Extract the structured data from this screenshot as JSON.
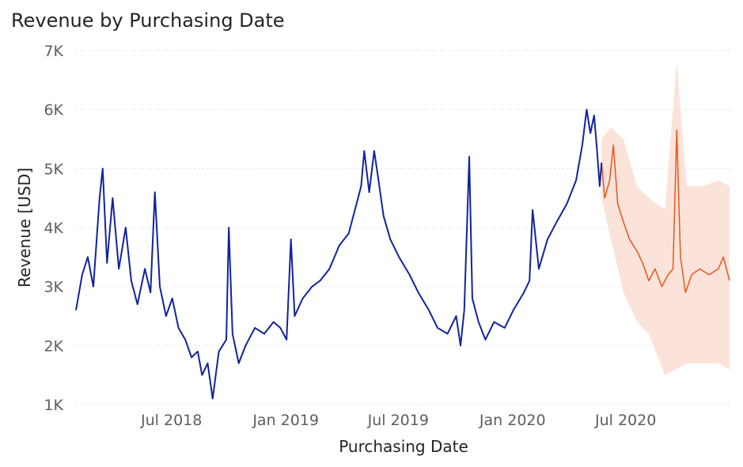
{
  "chart_data": {
    "type": "line",
    "title": "Revenue by Purchasing Date",
    "xlabel": "Purchasing Date",
    "ylabel": "Revenue [USD]",
    "x_tick_labels": [
      "Jul 2018",
      "Jan 2019",
      "Jul 2019",
      "Jan 2020",
      "Jul 2020"
    ],
    "y_tick_labels": [
      "1K",
      "2K",
      "3K",
      "4K",
      "5K",
      "6K",
      "7K"
    ],
    "y_ticks": [
      1000,
      2000,
      3000,
      4000,
      5000,
      6000,
      7000
    ],
    "ylim": [
      1000,
      7000
    ],
    "xlim": [
      "2018-02-10",
      "2020-12-28"
    ],
    "grid": true,
    "colors": {
      "actual": "#12239E",
      "forecast": "#E8561A",
      "band": "#FBE3D9"
    },
    "series": [
      {
        "kind": "actual",
        "points": [
          [
            "2018-02-10",
            2600
          ],
          [
            "2018-02-20",
            3200
          ],
          [
            "2018-03-01",
            3500
          ],
          [
            "2018-03-10",
            3000
          ],
          [
            "2018-03-20",
            4500
          ],
          [
            "2018-03-25",
            5000
          ],
          [
            "2018-04-01",
            3400
          ],
          [
            "2018-04-10",
            4500
          ],
          [
            "2018-04-20",
            3300
          ],
          [
            "2018-05-01",
            4000
          ],
          [
            "2018-05-10",
            3100
          ],
          [
            "2018-05-20",
            2700
          ],
          [
            "2018-06-01",
            3300
          ],
          [
            "2018-06-10",
            2900
          ],
          [
            "2018-06-17",
            4600
          ],
          [
            "2018-06-25",
            3000
          ],
          [
            "2018-07-05",
            2500
          ],
          [
            "2018-07-15",
            2800
          ],
          [
            "2018-07-25",
            2300
          ],
          [
            "2018-08-05",
            2100
          ],
          [
            "2018-08-15",
            1800
          ],
          [
            "2018-08-25",
            1900
          ],
          [
            "2018-09-01",
            1500
          ],
          [
            "2018-09-10",
            1700
          ],
          [
            "2018-09-18",
            1100
          ],
          [
            "2018-09-28",
            1900
          ],
          [
            "2018-10-10",
            2100
          ],
          [
            "2018-10-14",
            4000
          ],
          [
            "2018-10-20",
            2200
          ],
          [
            "2018-10-30",
            1700
          ],
          [
            "2018-11-10",
            2000
          ],
          [
            "2018-11-25",
            2300
          ],
          [
            "2018-12-10",
            2200
          ],
          [
            "2018-12-25",
            2400
          ],
          [
            "2019-01-05",
            2300
          ],
          [
            "2019-01-15",
            2100
          ],
          [
            "2019-01-22",
            3800
          ],
          [
            "2019-01-28",
            2500
          ],
          [
            "2019-02-10",
            2800
          ],
          [
            "2019-02-25",
            3000
          ],
          [
            "2019-03-10",
            3100
          ],
          [
            "2019-03-25",
            3300
          ],
          [
            "2019-04-10",
            3700
          ],
          [
            "2019-04-25",
            3900
          ],
          [
            "2019-05-05",
            4300
          ],
          [
            "2019-05-15",
            4700
          ],
          [
            "2019-05-20",
            5300
          ],
          [
            "2019-05-28",
            4600
          ],
          [
            "2019-06-05",
            5300
          ],
          [
            "2019-06-12",
            4800
          ],
          [
            "2019-06-20",
            4200
          ],
          [
            "2019-07-01",
            3800
          ],
          [
            "2019-07-15",
            3500
          ],
          [
            "2019-08-01",
            3200
          ],
          [
            "2019-08-15",
            2900
          ],
          [
            "2019-09-01",
            2600
          ],
          [
            "2019-09-15",
            2300
          ],
          [
            "2019-10-01",
            2200
          ],
          [
            "2019-10-15",
            2500
          ],
          [
            "2019-10-22",
            2000
          ],
          [
            "2019-10-28",
            2600
          ],
          [
            "2019-11-05",
            5200
          ],
          [
            "2019-11-10",
            2800
          ],
          [
            "2019-11-20",
            2400
          ],
          [
            "2019-12-01",
            2100
          ],
          [
            "2019-12-15",
            2400
          ],
          [
            "2020-01-01",
            2300
          ],
          [
            "2020-01-15",
            2600
          ],
          [
            "2020-02-01",
            2900
          ],
          [
            "2020-02-10",
            3100
          ],
          [
            "2020-02-15",
            4300
          ],
          [
            "2020-02-25",
            3300
          ],
          [
            "2020-03-10",
            3800
          ],
          [
            "2020-03-25",
            4100
          ],
          [
            "2020-04-10",
            4400
          ],
          [
            "2020-04-25",
            4800
          ],
          [
            "2020-05-05",
            5400
          ],
          [
            "2020-05-12",
            6000
          ],
          [
            "2020-05-18",
            5600
          ],
          [
            "2020-05-24",
            5900
          ],
          [
            "2020-05-28",
            5400
          ],
          [
            "2020-06-02",
            4700
          ],
          [
            "2020-06-05",
            5100
          ]
        ]
      },
      {
        "kind": "forecast",
        "points": [
          [
            "2020-06-05",
            5100
          ],
          [
            "2020-06-10",
            4500
          ],
          [
            "2020-06-18",
            4800
          ],
          [
            "2020-06-24",
            5400
          ],
          [
            "2020-07-01",
            4400
          ],
          [
            "2020-07-10",
            4100
          ],
          [
            "2020-07-20",
            3800
          ],
          [
            "2020-08-01",
            3600
          ],
          [
            "2020-08-10",
            3400
          ],
          [
            "2020-08-20",
            3100
          ],
          [
            "2020-08-30",
            3300
          ],
          [
            "2020-09-10",
            3000
          ],
          [
            "2020-09-20",
            3200
          ],
          [
            "2020-09-28",
            3300
          ],
          [
            "2020-10-04",
            5650
          ],
          [
            "2020-10-10",
            3500
          ],
          [
            "2020-10-18",
            2900
          ],
          [
            "2020-10-28",
            3200
          ],
          [
            "2020-11-10",
            3300
          ],
          [
            "2020-11-25",
            3200
          ],
          [
            "2020-12-10",
            3300
          ],
          [
            "2020-12-18",
            3500
          ],
          [
            "2020-12-28",
            3100
          ]
        ],
        "upper": [
          [
            "2020-06-05",
            5500
          ],
          [
            "2020-06-20",
            5700
          ],
          [
            "2020-07-10",
            5500
          ],
          [
            "2020-08-01",
            4700
          ],
          [
            "2020-08-20",
            4500
          ],
          [
            "2020-09-15",
            4300
          ],
          [
            "2020-10-04",
            6800
          ],
          [
            "2020-10-20",
            4700
          ],
          [
            "2020-11-15",
            4700
          ],
          [
            "2020-12-10",
            4800
          ],
          [
            "2020-12-28",
            4700
          ]
        ],
        "lower": [
          [
            "2020-06-05",
            4500
          ],
          [
            "2020-06-20",
            3800
          ],
          [
            "2020-07-10",
            2900
          ],
          [
            "2020-08-01",
            2400
          ],
          [
            "2020-08-20",
            2200
          ],
          [
            "2020-09-15",
            1500
          ],
          [
            "2020-10-04",
            1600
          ],
          [
            "2020-10-20",
            1700
          ],
          [
            "2020-11-15",
            1700
          ],
          [
            "2020-12-10",
            1700
          ],
          [
            "2020-12-28",
            1600
          ]
        ]
      }
    ]
  }
}
